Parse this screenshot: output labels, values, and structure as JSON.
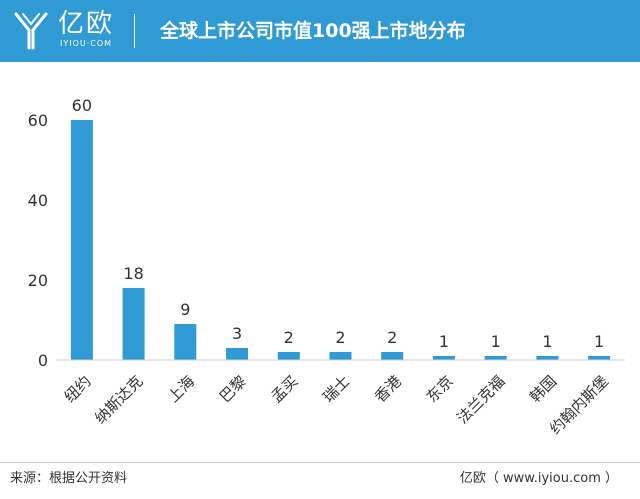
{
  "header": {
    "logo_text": "亿欧",
    "logo_sub": "IYIOU·COM",
    "title": "全球上市公司市值100强上市地分布"
  },
  "colors": {
    "header_bg": "#2f9ad3",
    "bar": "#2f9ad3",
    "axis": "#cfcfcf",
    "text": "#333333"
  },
  "chart_data": {
    "type": "bar",
    "title": "全球上市公司市值100强上市地分布",
    "xlabel": "",
    "ylabel": "",
    "categories": [
      "纽约",
      "纳斯达克",
      "上海",
      "巴黎",
      "孟买",
      "瑞士",
      "香港",
      "东京",
      "法兰克福",
      "韩国",
      "约翰内斯堡"
    ],
    "values": [
      60,
      18,
      9,
      3,
      2,
      2,
      2,
      1,
      1,
      1,
      1
    ],
    "ylim": [
      0,
      60
    ],
    "yticks": [
      0,
      20,
      40,
      60
    ],
    "grid": false,
    "data_labels": true,
    "legend": "none"
  },
  "footer": {
    "source": "来源：根据公开资料",
    "credit": "亿欧（ www.iyiou.com ）"
  }
}
